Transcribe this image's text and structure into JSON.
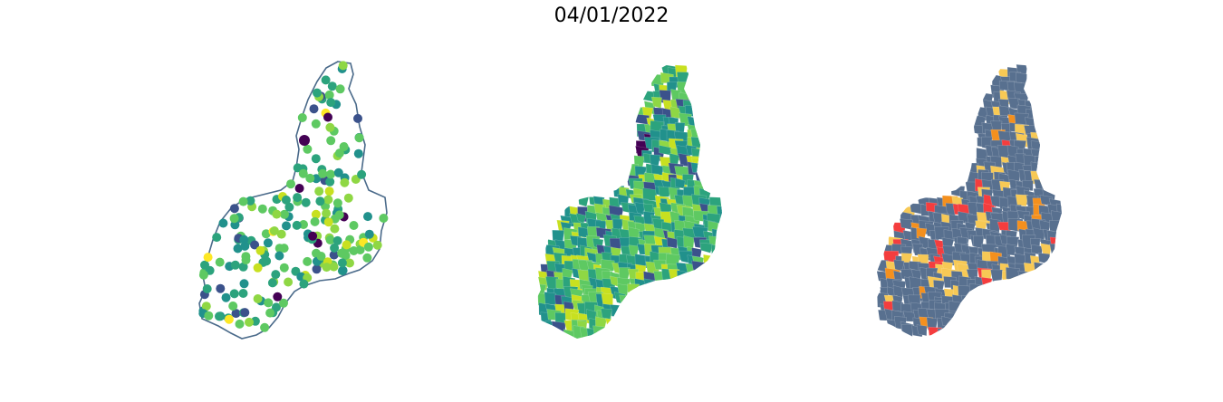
{
  "title": "04/01/2022",
  "colors": {
    "outline": "#4a6a8a",
    "viridis": [
      "#440154",
      "#3b528b",
      "#21918c",
      "#2ca37d",
      "#5ec962",
      "#8fd744",
      "#c8e020",
      "#fde725"
    ],
    "categorical": {
      "base": "#58708f",
      "yellow": "#f7c955",
      "orange": "#f4901e",
      "red": "#f43d3e"
    }
  },
  "panels": [
    {
      "name": "points-map"
    },
    {
      "name": "choropleth-map"
    },
    {
      "name": "category-map"
    }
  ]
}
